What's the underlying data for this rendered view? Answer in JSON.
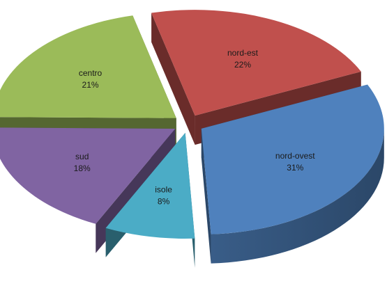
{
  "chart_data": {
    "type": "pie",
    "style": "3d-exploded",
    "title": "",
    "slices": [
      {
        "label": "nord-ovest",
        "value": 31,
        "value_text": "31%",
        "color": "#4f81bd"
      },
      {
        "label": "nord-est",
        "value": 22,
        "value_text": "22%",
        "color": "#c0504d"
      },
      {
        "label": "centro",
        "value": 21,
        "value_text": "21%",
        "color": "#9bbb59"
      },
      {
        "label": "sud",
        "value": 18,
        "value_text": "18%",
        "color": "#8064a2"
      },
      {
        "label": "isole",
        "value": 8,
        "value_text": "8%",
        "color": "#4bacc6"
      }
    ],
    "legend": "none"
  }
}
